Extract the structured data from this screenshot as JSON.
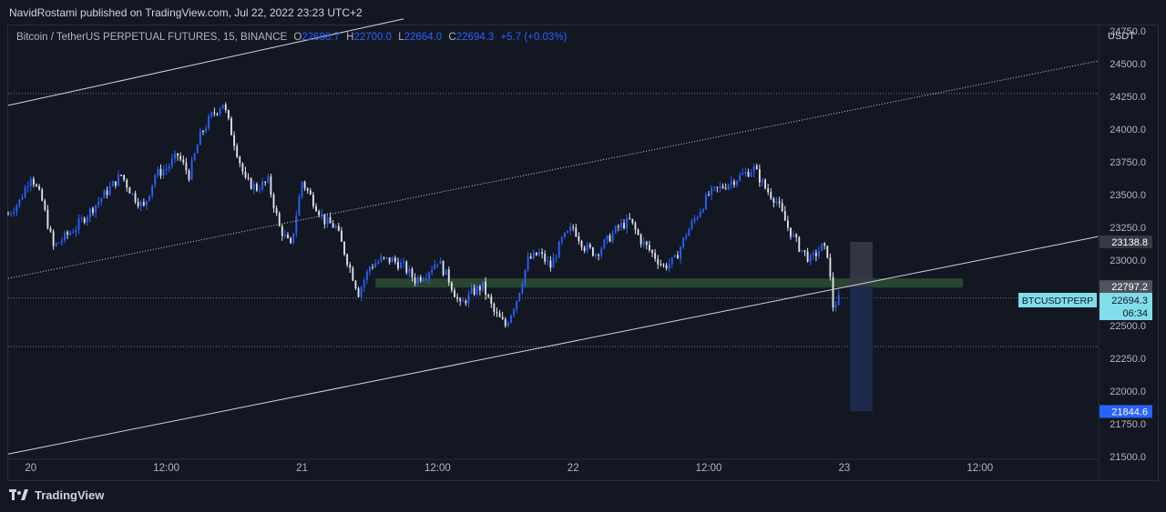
{
  "header": {
    "publisher_line": "NavidRostami published on TradingView.com, Jul 22, 2022 23:23 UTC+2"
  },
  "legend": {
    "symbol": "Bitcoin / TetherUS PERPETUAL FUTURES, 15, BINANCE",
    "o_label": "O",
    "o_value": "22688.7",
    "h_label": "H",
    "h_value": "22700.0",
    "l_label": "L",
    "l_value": "22664.0",
    "c_label": "C",
    "c_value": "22694.3",
    "change": "+5.7 (+0.03%)"
  },
  "footer": {
    "logo_text": "TradingView"
  },
  "colors": {
    "background": "#131722",
    "up": "#2962ff",
    "down": "#e0e3eb",
    "price_tag": "#80deea",
    "target_tag": "#2962ff",
    "zone": "#2e4d33"
  },
  "chart_data": {
    "type": "candlestick",
    "currency_label": "USDT",
    "y_ticks": [
      "24750.0",
      "24500.0",
      "24250.0",
      "24000.0",
      "23750.0",
      "23500.0",
      "23250.0",
      "23000.0",
      "22750.0",
      "22500.0",
      "22250.0",
      "22000.0",
      "21750.0",
      "21500.0"
    ],
    "ylim": [
      21480,
      24790
    ],
    "x_ticks": [
      {
        "label": "20",
        "t": 0
      },
      {
        "label": "12:00",
        "t": 12
      },
      {
        "label": "21",
        "t": 24
      },
      {
        "label": "12:00",
        "t": 36
      },
      {
        "label": "22",
        "t": 48
      },
      {
        "label": "12:00",
        "t": 60
      },
      {
        "label": "23",
        "t": 72
      },
      {
        "label": "12:00",
        "t": 84
      }
    ],
    "xlim": [
      -2,
      94.5
    ],
    "price_labels": {
      "upper": "23138.8",
      "lower": "22797.2",
      "target": "21844.6",
      "current_symbol": "BTCUSDTPERP",
      "current_price": "22694.3",
      "countdown": "06:34"
    },
    "price_levels": {
      "upper": 23138.8,
      "lower": 22797.2,
      "target": 21844.6,
      "current": 22694.3
    },
    "path_hours": [
      -2,
      -1,
      0,
      1,
      2,
      4,
      6,
      8,
      9,
      10,
      11,
      12,
      13,
      14,
      15,
      16,
      17,
      18,
      19,
      20,
      21,
      22,
      23,
      24,
      25,
      26,
      27,
      28,
      29,
      30,
      31,
      32,
      33,
      34,
      35,
      36,
      37,
      38,
      39,
      40,
      41,
      42,
      43,
      44,
      45,
      46,
      47,
      48,
      49,
      50,
      51,
      52,
      53,
      54,
      55,
      56,
      57,
      58,
      59,
      60,
      61,
      62,
      63,
      64,
      65,
      66,
      66.5,
      67,
      68,
      69,
      70,
      70.5,
      71,
      71.5
    ],
    "path_closes": [
      23350,
      23450,
      23650,
      23450,
      23100,
      23250,
      23450,
      23650,
      23500,
      23400,
      23650,
      23700,
      23800,
      23650,
      23950,
      24100,
      24200,
      23900,
      23600,
      23550,
      23600,
      23250,
      23100,
      23600,
      23450,
      23300,
      23250,
      23000,
      22750,
      22950,
      23000,
      23000,
      22950,
      22850,
      22900,
      23000,
      22850,
      22650,
      22750,
      22800,
      22600,
      22500,
      22700,
      23000,
      23050,
      22950,
      23150,
      23250,
      23100,
      23050,
      23150,
      23250,
      23300,
      23150,
      23050,
      22950,
      23000,
      23200,
      23350,
      23500,
      23550,
      23600,
      23650,
      23700,
      23550,
      23450,
      23350,
      23250,
      23100,
      23000,
      23100,
      23050,
      22650,
      22700
    ],
    "dotted_levels": [
      24270,
      22710,
      22340
    ],
    "lines": [
      {
        "style": "solid",
        "from": [
          -2,
          24180
        ],
        "to": [
          33,
          24840
        ]
      },
      {
        "style": "dotted",
        "from": [
          -2,
          22860
        ],
        "to": [
          94.5,
          24520
        ]
      },
      {
        "style": "solid",
        "from": [
          -2,
          21520
        ],
        "to": [
          94.5,
          23180
        ]
      }
    ],
    "zone": {
      "t0": 30.5,
      "t1": 82.5,
      "p0": 22790,
      "p1": 22860
    },
    "projection": {
      "t0": 72.5,
      "t1": 74.5,
      "p_entry": 22797.2,
      "p_high": 23138.8,
      "p_low": 21844.6
    },
    "grid": false
  }
}
